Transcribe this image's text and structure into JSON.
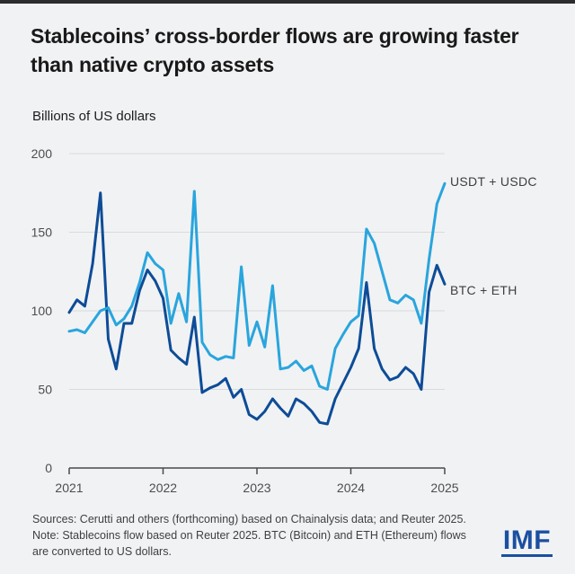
{
  "page": {
    "title": "Stablecoins’ cross-border flows are growing faster than native crypto assets",
    "subtitle": "Billions of US dollars",
    "footer": {
      "sources_line": "Sources: Cerutti and others (forthcoming) based on Chainalysis data; and Reuter 2025.",
      "note_line": "Note: Stablecoins flow based on Reuter 2025. BTC (Bitcoin) and ETH (Ethereum) flows are converted to US dollars."
    },
    "logo_text": "IMF"
  },
  "colors": {
    "background": "#f1f2f4",
    "usdt_usdc_line": "#29a5dd",
    "btc_eth_line": "#0d4c97",
    "grid": "#d9dadc",
    "axis": "#4a4a4a",
    "tick_label": "#4d4d4d",
    "legend_text": "#3e3e3e",
    "title_text": "#191919",
    "footer_text": "#3f3f3f",
    "imf_blue": "#1b4fa1"
  },
  "chart_data": {
    "type": "line",
    "title": "Stablecoins’ cross-border flows are growing faster than native crypto assets",
    "ylabel": "Billions of US dollars",
    "x_frequency": "monthly",
    "x_start": "2021-01",
    "x_end": "2025-01",
    "x_tick_labels": [
      "2021",
      "2022",
      "2023",
      "2024",
      "2025"
    ],
    "y_ticks": [
      0,
      50,
      100,
      150,
      200
    ],
    "ylim": [
      0,
      200
    ],
    "grid": "horizontal",
    "legend_position": "right-of-line-ends",
    "series": [
      {
        "name": "USDT + USDC",
        "color": "#29a5dd",
        "values": [
          87,
          88,
          86,
          93,
          100,
          102,
          91,
          95,
          103,
          118,
          137,
          130,
          126,
          92,
          111,
          93,
          176,
          80,
          72,
          69,
          71,
          70,
          128,
          78,
          93,
          77,
          116,
          63,
          64,
          68,
          62,
          65,
          52,
          50,
          76,
          85,
          93,
          97,
          152,
          143,
          125,
          107,
          105,
          110,
          107,
          92,
          133,
          168,
          181
        ]
      },
      {
        "name": "BTC + ETH",
        "color": "#0d4c97",
        "values": [
          99,
          107,
          103,
          130,
          175,
          82,
          63,
          92,
          92,
          113,
          126,
          119,
          108,
          75,
          70,
          66,
          96,
          48,
          51,
          53,
          57,
          45,
          50,
          34,
          31,
          36,
          44,
          38,
          33,
          44,
          41,
          36,
          29,
          28,
          44,
          54,
          64,
          76,
          118,
          76,
          63,
          56,
          58,
          64,
          60,
          50,
          112,
          129,
          117
        ]
      }
    ]
  }
}
